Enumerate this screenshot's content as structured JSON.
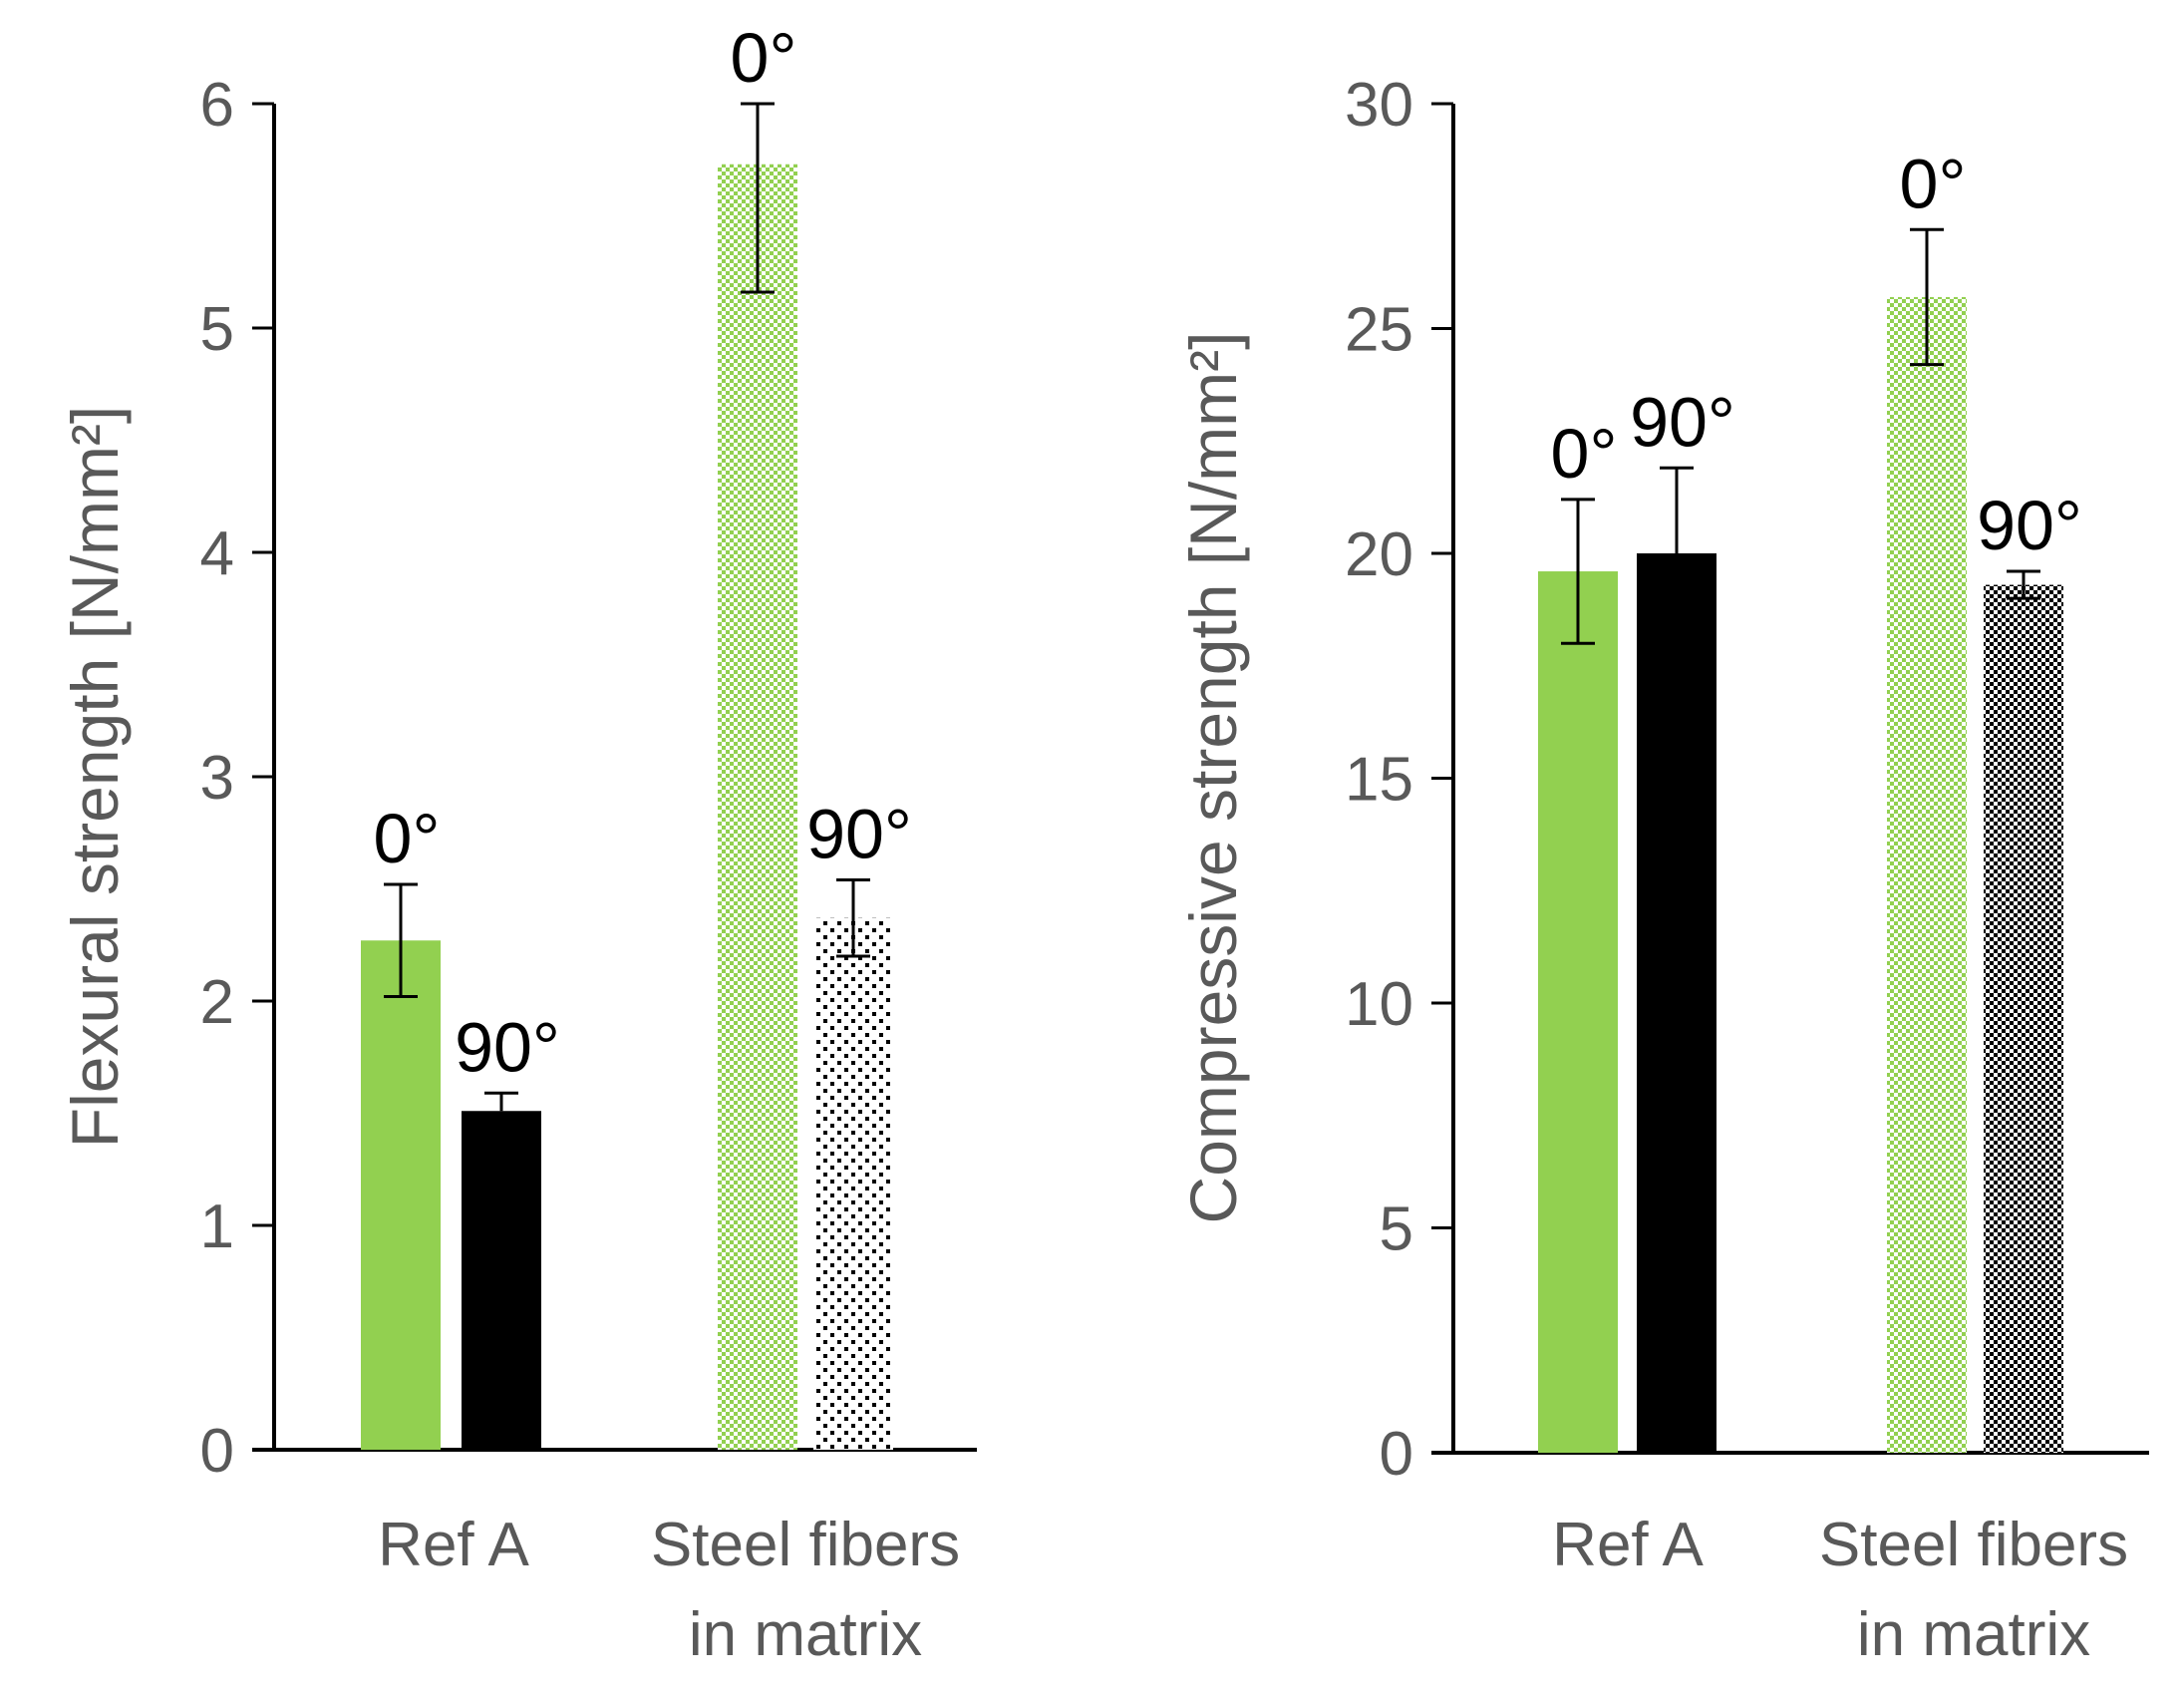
{
  "chart_data": [
    {
      "type": "bar",
      "ylabel": "Flexural strength [N/mm²]",
      "ylim": [
        0,
        6
      ],
      "yticks": [
        0,
        1,
        2,
        3,
        4,
        5,
        6
      ],
      "categories": [
        {
          "lines": [
            "Ref A"
          ]
        },
        {
          "lines": [
            "Steel fibers",
            "in matrix"
          ]
        }
      ],
      "bars": [
        {
          "category": 0,
          "slot": 0,
          "series": "0°",
          "value": 2.27,
          "err_low": 2.02,
          "err_high": 2.52,
          "color": "#92D050",
          "pattern": "solid",
          "label": "0°"
        },
        {
          "category": 0,
          "slot": 1,
          "series": "90°",
          "value": 1.51,
          "err_low": 1.51,
          "err_high": 1.59,
          "color": "#000000",
          "pattern": "solid",
          "label": "90°"
        },
        {
          "category": 1,
          "slot": 0,
          "series": "0°",
          "value": 5.73,
          "err_low": 5.16,
          "err_high": 6.0,
          "color": "#92D050",
          "pattern": "dotted",
          "label": "0°"
        },
        {
          "category": 1,
          "slot": 1,
          "series": "90°",
          "value": 2.37,
          "err_low": 2.2,
          "err_high": 2.54,
          "color": "#000000",
          "pattern": "dotted",
          "label": "90°"
        }
      ]
    },
    {
      "type": "bar",
      "ylabel": "Compressive strength [N/mm²]",
      "ylim": [
        0,
        30
      ],
      "yticks": [
        0,
        5,
        10,
        15,
        20,
        25,
        30
      ],
      "categories": [
        {
          "lines": [
            "Ref A"
          ]
        },
        {
          "lines": [
            "Steel fibers",
            "in matrix"
          ]
        }
      ],
      "bars": [
        {
          "category": 0,
          "slot": 0,
          "series": "0°",
          "value": 19.6,
          "err_low": 18.0,
          "err_high": 21.2,
          "color": "#92D050",
          "pattern": "solid",
          "label": "0°"
        },
        {
          "category": 0,
          "slot": 1,
          "series": "90°",
          "value": 20.0,
          "err_low": 20.0,
          "err_high": 21.9,
          "color": "#000000",
          "pattern": "solid",
          "label": "90°"
        },
        {
          "category": 1,
          "slot": 0,
          "series": "0°",
          "value": 25.7,
          "err_low": 24.2,
          "err_high": 27.2,
          "color": "#92D050",
          "pattern": "dotted",
          "label": "0°"
        },
        {
          "category": 1,
          "slot": 1,
          "series": "90°",
          "value": 19.3,
          "err_low": 19.0,
          "err_high": 19.6,
          "color": "#000000",
          "pattern": "dotted",
          "label": "90°"
        }
      ]
    }
  ]
}
